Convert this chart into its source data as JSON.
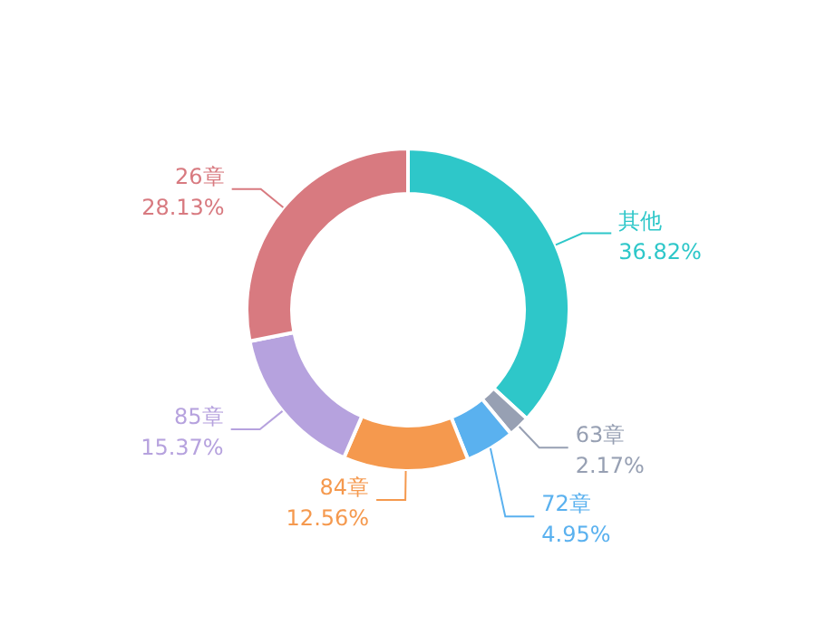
{
  "chart_data": {
    "type": "donut",
    "categories": [
      "其他",
      "63章",
      "72章",
      "84章",
      "85章",
      "26章"
    ],
    "values": [
      36.82,
      2.17,
      4.95,
      12.56,
      15.37,
      28.13
    ],
    "value_labels": [
      "36.82%",
      "2.17%",
      "4.95%",
      "12.56%",
      "15.37%",
      "28.13%"
    ],
    "colors": [
      "#2ec7c9",
      "#97a0b3",
      "#5ab1ef",
      "#f5994e",
      "#b6a2de",
      "#d87a80"
    ],
    "legend": false
  }
}
